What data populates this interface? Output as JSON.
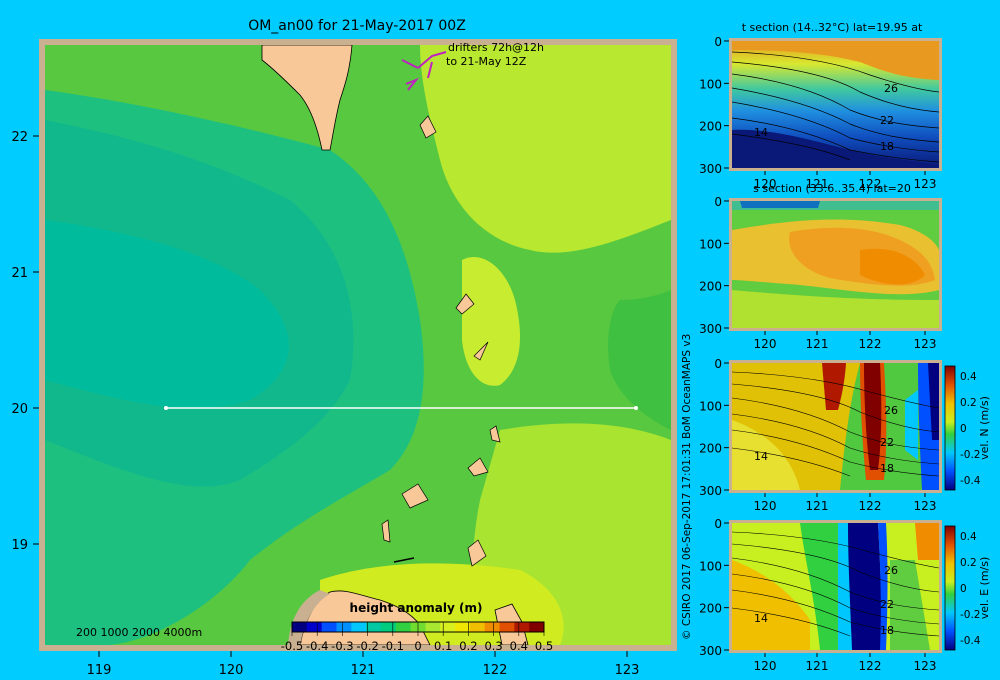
{
  "title": "OM_an00 for 21-May-2017 00Z",
  "map": {
    "lat_ticks": [
      "22",
      "21",
      "20",
      "19"
    ],
    "lon_ticks": [
      "119",
      "120",
      "121",
      "122",
      "123"
    ],
    "depth_legend": "200  1000  2000  4000m",
    "drifters_line1": "drifters 72h@12h",
    "drifters_line2": "to 21-May 12Z",
    "section_lat": 20,
    "colorbar": {
      "title": "height anomaly (m)",
      "ticks": [
        "-0.5",
        "-0.4",
        "-0.3",
        "-0.2",
        "-0.1",
        "0",
        "0.1",
        "0.2",
        "0.3",
        "0.4",
        "0.5"
      ],
      "colors": [
        "#000080",
        "#0000cd",
        "#0050ff",
        "#0090ff",
        "#00c8ff",
        "#00c8a0",
        "#00cc80",
        "#30d040",
        "#70dc30",
        "#a8e830",
        "#d8f020",
        "#f0e800",
        "#f0c000",
        "#f08c00",
        "#e05000",
        "#b01800",
        "#800000"
      ]
    }
  },
  "credit": "© CSIRO 2017   06-Sep-2017 17:01:31 BoM OceanMAPS v3",
  "panels": {
    "t_section": {
      "title": "t section (14..32°C) lat=19.95 at",
      "contours": [
        "26",
        "22",
        "18",
        "14"
      ]
    },
    "s_section": {
      "title": "s section (33.6..35.4) lat=20"
    },
    "v_section": {
      "colorbar_label": "vel. N (m/s)",
      "contours": [
        "26",
        "22",
        "18",
        "14"
      ]
    },
    "u_section": {
      "colorbar_label": "vel. E (m/s)",
      "contours": [
        "26",
        "22",
        "18",
        "14"
      ]
    },
    "depth_ticks": [
      "0",
      "100",
      "200",
      "300"
    ],
    "lon_ticks": [
      "120",
      "121",
      "122",
      "123"
    ],
    "vel_ticks": [
      "0.4",
      "0.2",
      "0",
      "-0.2",
      "-0.4"
    ]
  }
}
